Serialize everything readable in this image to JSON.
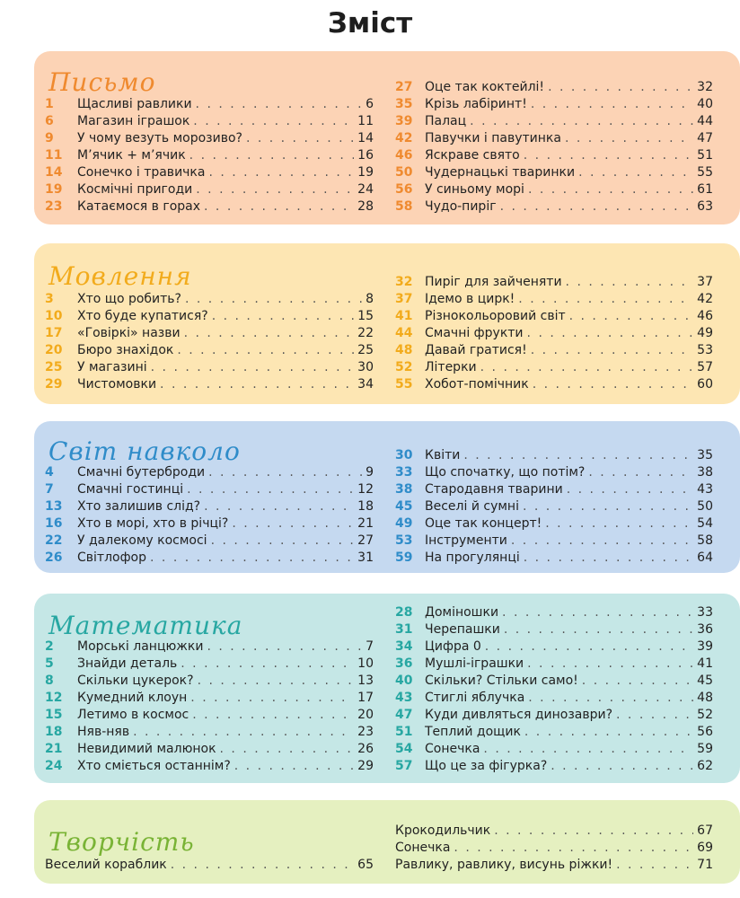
{
  "title": "Зміст",
  "colors": {
    "writing_bg": "#fcd3b5",
    "writing_accent": "#ef8a2f",
    "speech_bg": "#fde6b3",
    "speech_accent": "#f2ab1c",
    "world_bg": "#c5d9f0",
    "world_accent": "#2f8cc9",
    "math_bg": "#c5e7e6",
    "math_accent": "#27a7a2",
    "creative_bg": "#e5f0c0",
    "creative_accent": "#79b335"
  },
  "sections": [
    {
      "title": "Письмо",
      "left": [
        {
          "num": "1",
          "label": "Щасливі равлики",
          "page": "6"
        },
        {
          "num": "6",
          "label": "Магазин іграшок",
          "page": "11"
        },
        {
          "num": "9",
          "label": "У чому везуть морозиво?",
          "page": "14"
        },
        {
          "num": "11",
          "label": "М’ячик + м’ячик",
          "page": "16"
        },
        {
          "num": "14",
          "label": "Сонечко і травичка",
          "page": "19"
        },
        {
          "num": "19",
          "label": "Космічні пригоди",
          "page": "24"
        },
        {
          "num": "23",
          "label": "Катаємося в горах",
          "page": "28"
        }
      ],
      "right": [
        {
          "num": "27",
          "label": "Оце так коктейлі!",
          "page": "32"
        },
        {
          "num": "35",
          "label": "Крізь лабіринт!",
          "page": "40"
        },
        {
          "num": "39",
          "label": "Палац",
          "page": "44"
        },
        {
          "num": "42",
          "label": "Павучки і павутинка",
          "page": "47"
        },
        {
          "num": "46",
          "label": "Яскраве свято",
          "page": "51"
        },
        {
          "num": "50",
          "label": "Чудернацькі тваринки",
          "page": "55"
        },
        {
          "num": "56",
          "label": "У синьому морі",
          "page": "61"
        },
        {
          "num": "58",
          "label": "Чудо-пиріг",
          "page": "63"
        }
      ]
    },
    {
      "title": "Мовлення",
      "left": [
        {
          "num": "3",
          "label": "Хто що робить?",
          "page": "8"
        },
        {
          "num": "10",
          "label": "Хто буде купатися?",
          "page": "15"
        },
        {
          "num": "17",
          "label": "«Говіркі» назви",
          "page": "22"
        },
        {
          "num": "20",
          "label": "Бюро знахідок",
          "page": "25"
        },
        {
          "num": "25",
          "label": "У магазині",
          "page": "30"
        },
        {
          "num": "29",
          "label": "Чистомовки",
          "page": "34"
        }
      ],
      "right": [
        {
          "num": "32",
          "label": "Пиріг для зайченяти",
          "page": "37"
        },
        {
          "num": "37",
          "label": "Ідемо в цирк!",
          "page": "42"
        },
        {
          "num": "41",
          "label": "Різнокольоровий світ",
          "page": "46"
        },
        {
          "num": "44",
          "label": "Смачні фрукти",
          "page": "49"
        },
        {
          "num": "48",
          "label": "Давай гратися!",
          "page": "53"
        },
        {
          "num": "52",
          "label": "Літерки",
          "page": "57"
        },
        {
          "num": "55",
          "label": "Хобот-помічник",
          "page": "60"
        }
      ]
    },
    {
      "title": "Світ навколо",
      "left": [
        {
          "num": "4",
          "label": "Смачні бутерброди",
          "page": "9"
        },
        {
          "num": "7",
          "label": "Смачні гостинці",
          "page": "12"
        },
        {
          "num": "13",
          "label": "Хто залишив слід?",
          "page": "18"
        },
        {
          "num": "16",
          "label": "Хто в морі, хто в річці?",
          "page": "21"
        },
        {
          "num": "22",
          "label": "У далекому космосі",
          "page": "27"
        },
        {
          "num": "26",
          "label": "Світлофор",
          "page": "31"
        }
      ],
      "right": [
        {
          "num": "30",
          "label": "Квіти",
          "page": "35"
        },
        {
          "num": "33",
          "label": "Що спочатку, що потім?",
          "page": "38"
        },
        {
          "num": "38",
          "label": "Стародавня тварини",
          "page": "43"
        },
        {
          "num": "45",
          "label": "Веселі й сумні",
          "page": "50"
        },
        {
          "num": "49",
          "label": "Оце так концерт!",
          "page": "54"
        },
        {
          "num": "53",
          "label": "Інструменти",
          "page": "58"
        },
        {
          "num": "59",
          "label": "На прогулянці",
          "page": "64"
        }
      ]
    },
    {
      "title": "Математика",
      "left": [
        {
          "num": "2",
          "label": "Морські ланцюжки",
          "page": "7"
        },
        {
          "num": "5",
          "label": "Знайди деталь",
          "page": "10"
        },
        {
          "num": "8",
          "label": "Скільки цукерок?",
          "page": "13"
        },
        {
          "num": "12",
          "label": "Кумедний клоун",
          "page": "17"
        },
        {
          "num": "15",
          "label": "Летимо в космос",
          "page": "20"
        },
        {
          "num": "18",
          "label": "Няв-няв",
          "page": "23"
        },
        {
          "num": "21",
          "label": "Невидимий малюнок",
          "page": "26"
        },
        {
          "num": "24",
          "label": "Хто сміється останнім?",
          "page": "29"
        }
      ],
      "right": [
        {
          "num": "28",
          "label": "Доміношки",
          "page": "33"
        },
        {
          "num": "31",
          "label": "Черепашки",
          "page": "36"
        },
        {
          "num": "34",
          "label": "Цифра 0",
          "page": "39"
        },
        {
          "num": "36",
          "label": "Мушлі-іграшки",
          "page": "41"
        },
        {
          "num": "40",
          "label": "Скільки? Стільки само!",
          "page": "45"
        },
        {
          "num": "43",
          "label": "Стиглі яблучка",
          "page": "48"
        },
        {
          "num": "47",
          "label": "Куди дивляться динозаври?",
          "page": "52"
        },
        {
          "num": "51",
          "label": "Теплий дощик",
          "page": "56"
        },
        {
          "num": "54",
          "label": "Сонечка",
          "page": "59"
        },
        {
          "num": "57",
          "label": "Що це за фігурка?",
          "page": "62"
        }
      ]
    },
    {
      "title": "Творчість",
      "left": [
        {
          "num": "",
          "label": "Веселий кораблик",
          "page": "65"
        }
      ],
      "right": [
        {
          "num": "",
          "label": "Крокодильчик",
          "page": "67"
        },
        {
          "num": "",
          "label": "Сонечка",
          "page": "69"
        },
        {
          "num": "",
          "label": "Равлику, равлику, висунь ріжки!",
          "page": "71"
        }
      ]
    }
  ]
}
